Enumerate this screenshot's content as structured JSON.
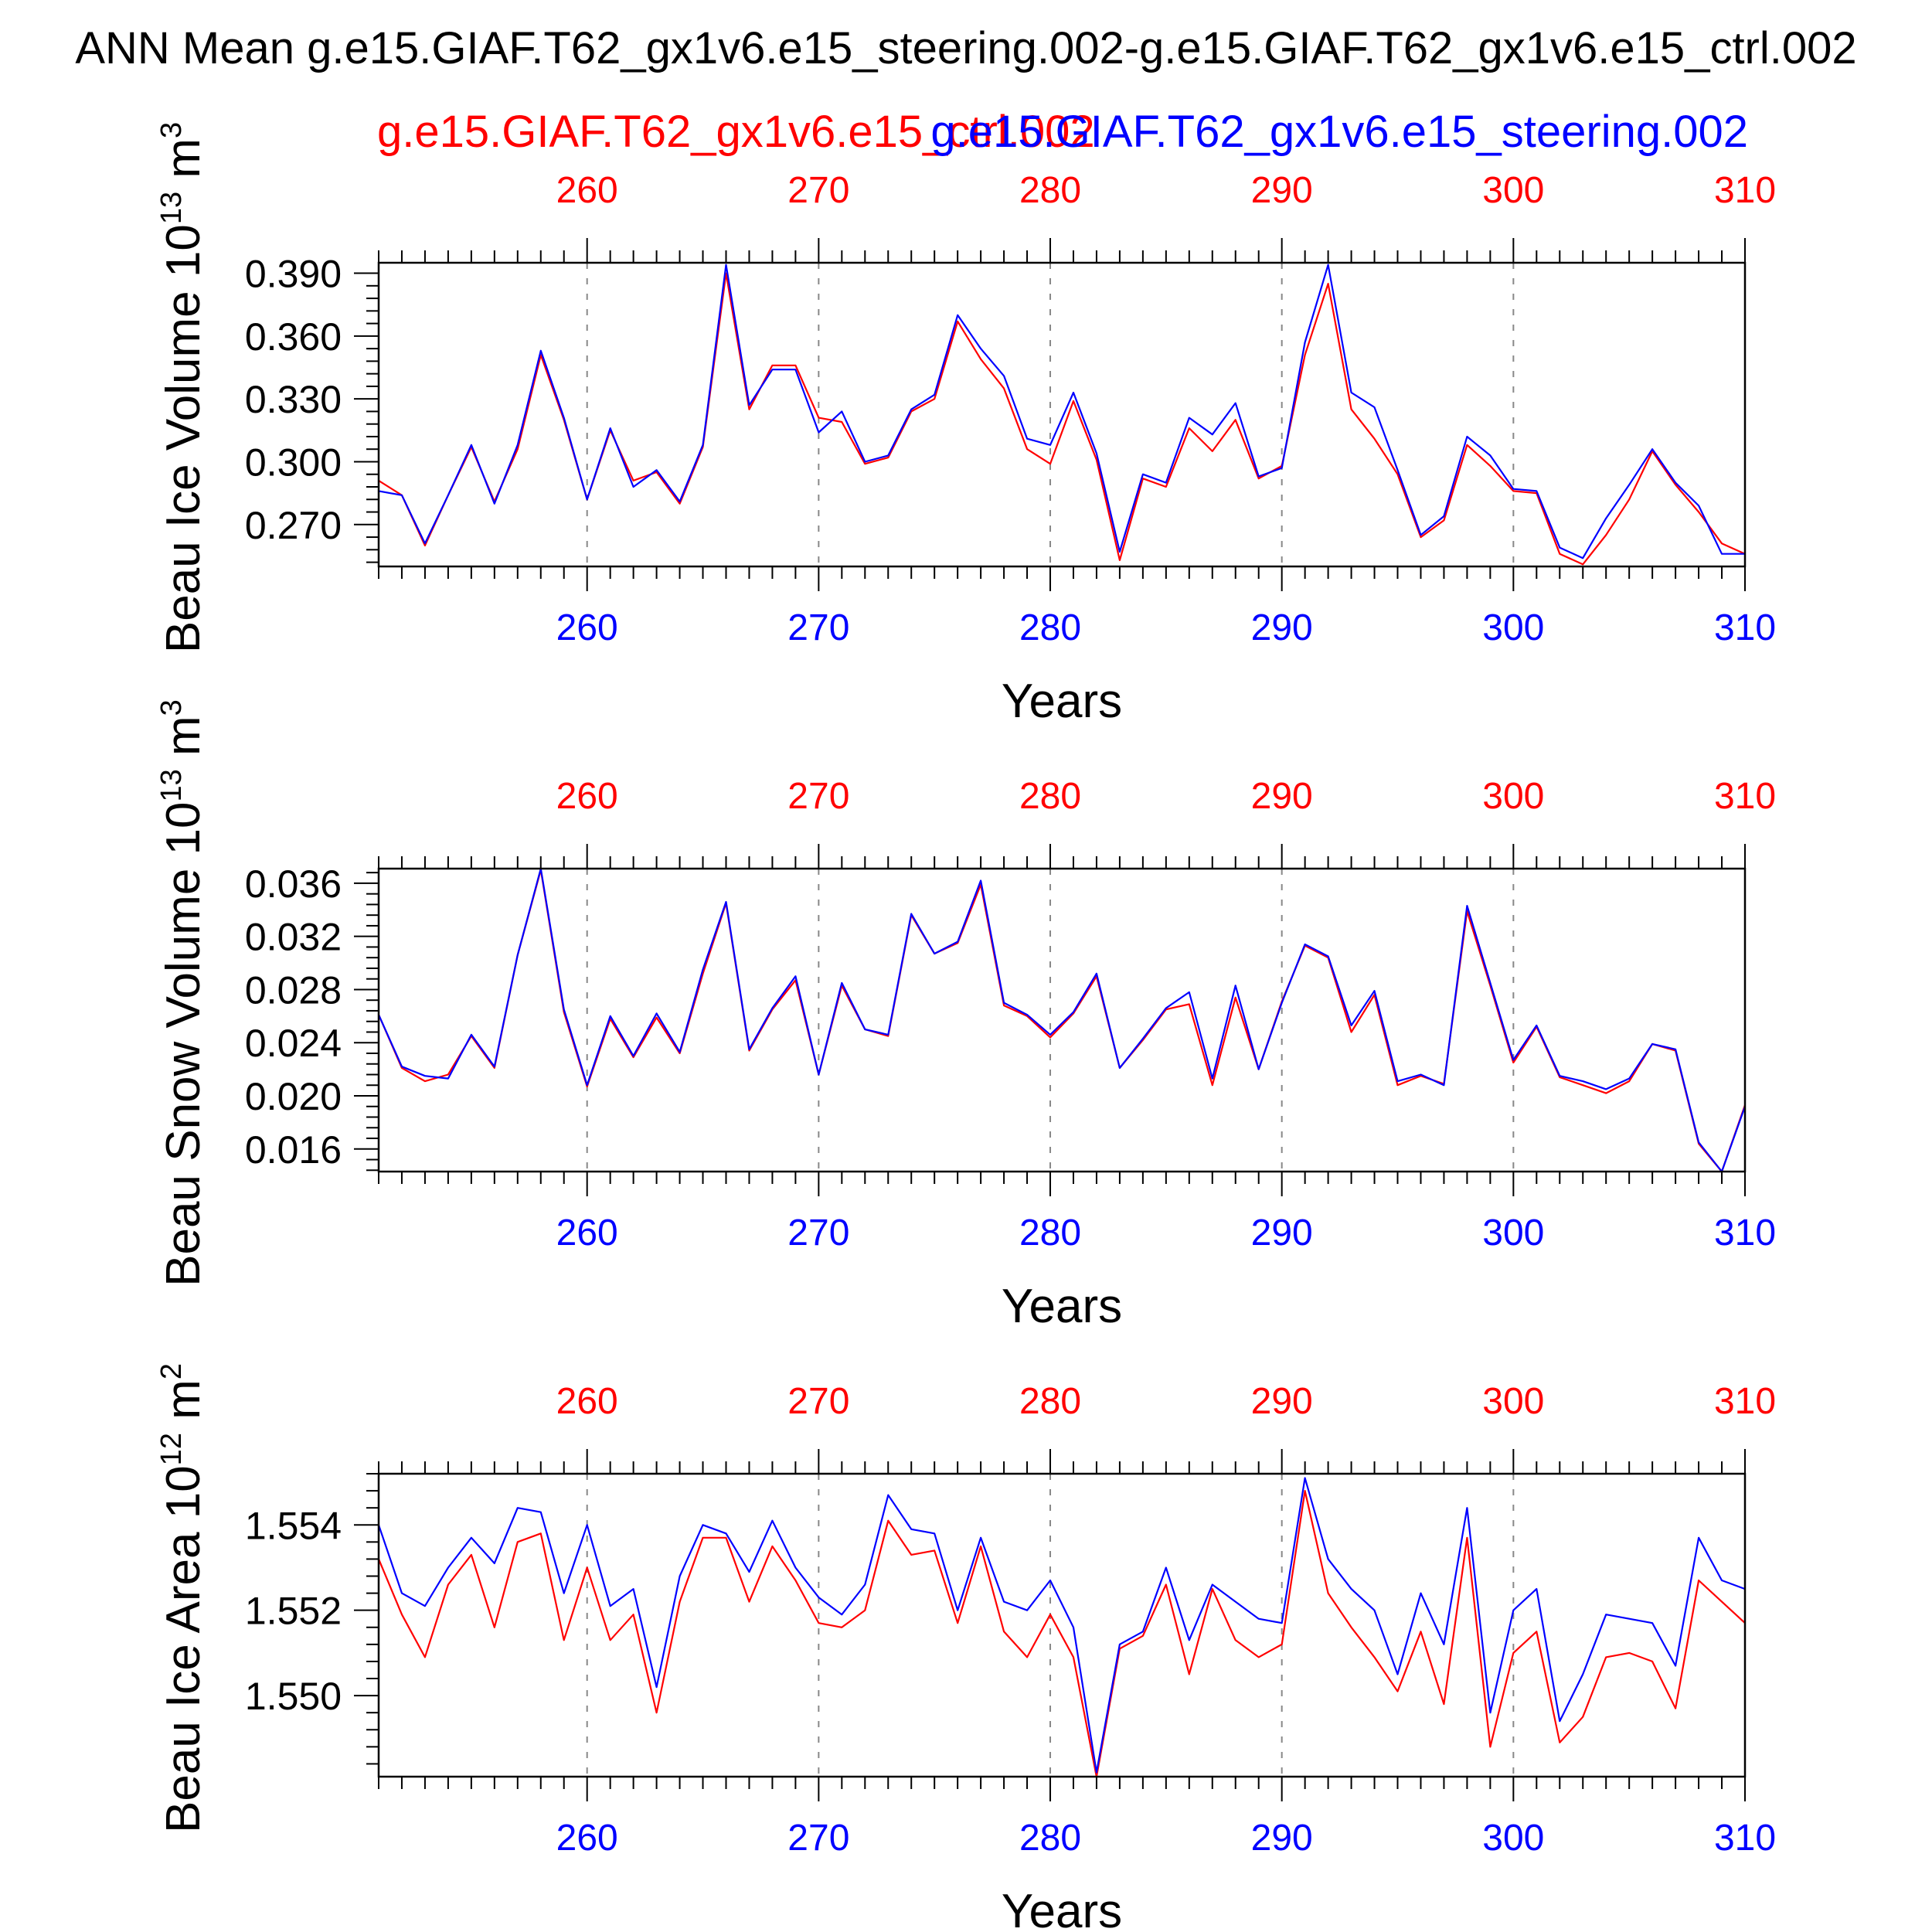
{
  "title": "ANN Mean g.e15.GIAF.T62_gx1v6.e15_steering.002-g.e15.GIAF.T62_gx1v6.e15_ctrl.002",
  "legend": {
    "ctrl_label": "g.e15.GIAF.T62_gx1v6.e15_ctrl.002",
    "steering_label": "g.e15.GIAF.T62_gx1v6.e15_steering.002"
  },
  "colors": {
    "ctrl": "#ff0000",
    "steering": "#0000ff",
    "axis": "#000000",
    "grid": "#888888"
  },
  "chart_data": [
    {
      "type": "line",
      "ylabel_main": "Beau Ice Volume 10",
      "ylabel_exp": "13",
      "ylabel_unit": "m",
      "ylabel_unit_exp": "3",
      "xlabel": "Years",
      "xlim": [
        251,
        310
      ],
      "ylim": [
        0.25,
        0.395
      ],
      "xticks": [
        260,
        270,
        280,
        290,
        300,
        310
      ],
      "yticks": [
        0.27,
        0.3,
        0.33,
        0.36,
        0.39
      ],
      "ytick_labels": [
        "0.270",
        "0.300",
        "0.330",
        "0.360",
        "0.390"
      ],
      "grid": "vertical dashed at major x ticks",
      "x": [
        251,
        252,
        253,
        254,
        255,
        256,
        257,
        258,
        259,
        260,
        261,
        262,
        263,
        264,
        265,
        266,
        267,
        268,
        269,
        270,
        271,
        272,
        273,
        274,
        275,
        276,
        277,
        278,
        279,
        280,
        281,
        282,
        283,
        284,
        285,
        286,
        287,
        288,
        289,
        290,
        291,
        292,
        293,
        294,
        295,
        296,
        297,
        298,
        299,
        300,
        301,
        302,
        303,
        304,
        305,
        306,
        307,
        308,
        309,
        310
      ],
      "series": [
        {
          "name": "g.e15.GIAF.T62_gx1v6.e15_ctrl.002",
          "color": "#ff0000",
          "values": [
            0.291,
            0.284,
            0.26,
            0.284,
            0.307,
            0.281,
            0.306,
            0.351,
            0.32,
            0.282,
            0.315,
            0.291,
            0.295,
            0.28,
            0.307,
            0.39,
            0.325,
            0.346,
            0.346,
            0.321,
            0.319,
            0.299,
            0.302,
            0.324,
            0.33,
            0.367,
            0.349,
            0.335,
            0.306,
            0.299,
            0.329,
            0.301,
            0.253,
            0.292,
            0.288,
            0.316,
            0.305,
            0.32,
            0.292,
            0.298,
            0.351,
            0.385,
            0.325,
            0.311,
            0.294,
            0.264,
            0.272,
            0.308,
            0.298,
            0.286,
            0.285,
            0.256,
            0.251,
            0.265,
            0.282,
            0.305,
            0.289,
            0.276,
            0.261,
            0.256
          ]
        },
        {
          "name": "g.e15.GIAF.T62_gx1v6.e15_steering.002",
          "color": "#0000ff",
          "values": [
            0.286,
            0.284,
            0.261,
            0.284,
            0.308,
            0.28,
            0.308,
            0.353,
            0.321,
            0.282,
            0.316,
            0.288,
            0.296,
            0.281,
            0.308,
            0.394,
            0.327,
            0.344,
            0.344,
            0.314,
            0.324,
            0.3,
            0.303,
            0.325,
            0.332,
            0.37,
            0.354,
            0.341,
            0.311,
            0.308,
            0.333,
            0.304,
            0.257,
            0.294,
            0.29,
            0.321,
            0.313,
            0.328,
            0.293,
            0.297,
            0.357,
            0.394,
            0.333,
            0.326,
            0.296,
            0.265,
            0.274,
            0.312,
            0.303,
            0.287,
            0.286,
            0.259,
            0.254,
            0.273,
            0.289,
            0.306,
            0.29,
            0.279,
            0.256,
            0.256
          ]
        }
      ]
    },
    {
      "type": "line",
      "ylabel_main": "Beau Snow Volume 10",
      "ylabel_exp": "13",
      "ylabel_unit": "m",
      "ylabel_unit_exp": "3",
      "xlabel": "Years",
      "xlim": [
        251,
        310
      ],
      "ylim": [
        0.0143,
        0.0371
      ],
      "xticks": [
        260,
        270,
        280,
        290,
        300,
        310
      ],
      "yticks": [
        0.016,
        0.02,
        0.024,
        0.028,
        0.032,
        0.036
      ],
      "ytick_labels": [
        "0.016",
        "0.020",
        "0.024",
        "0.028",
        "0.032",
        "0.036"
      ],
      "grid": "vertical dashed at major x ticks",
      "x": [
        251,
        252,
        253,
        254,
        255,
        256,
        257,
        258,
        259,
        260,
        261,
        262,
        263,
        264,
        265,
        266,
        267,
        268,
        269,
        270,
        271,
        272,
        273,
        274,
        275,
        276,
        277,
        278,
        279,
        280,
        281,
        282,
        283,
        284,
        285,
        286,
        287,
        288,
        289,
        290,
        291,
        292,
        293,
        294,
        295,
        296,
        297,
        298,
        299,
        300,
        301,
        302,
        303,
        304,
        305,
        306,
        307,
        308,
        309,
        310
      ],
      "series": [
        {
          "name": "g.e15.GIAF.T62_gx1v6.e15_ctrl.002",
          "color": "#ff0000",
          "values": [
            0.0261,
            0.0221,
            0.0211,
            0.0216,
            0.0245,
            0.0221,
            0.0306,
            0.037,
            0.0263,
            0.0207,
            0.0258,
            0.0229,
            0.0259,
            0.0232,
            0.0292,
            0.0345,
            0.0234,
            0.0265,
            0.0287,
            0.0216,
            0.0283,
            0.025,
            0.0245,
            0.0336,
            0.0307,
            0.0315,
            0.0359,
            0.0268,
            0.026,
            0.0244,
            0.0262,
            0.029,
            0.0221,
            0.0242,
            0.0265,
            0.0269,
            0.0208,
            0.0274,
            0.022,
            0.0271,
            0.0313,
            0.0304,
            0.0248,
            0.0276,
            0.0208,
            0.0215,
            0.0209,
            0.0339,
            0.0283,
            0.0225,
            0.0252,
            0.0214,
            0.0208,
            0.0202,
            0.0211,
            0.0239,
            0.0234,
            0.0164,
            0.0143,
            0.0193
          ]
        },
        {
          "name": "g.e15.GIAF.T62_gx1v6.e15_steering.002",
          "color": "#0000ff",
          "values": [
            0.0261,
            0.0222,
            0.0215,
            0.0213,
            0.0246,
            0.0222,
            0.0306,
            0.0371,
            0.0265,
            0.0208,
            0.026,
            0.023,
            0.0262,
            0.0233,
            0.0295,
            0.0346,
            0.0235,
            0.0266,
            0.029,
            0.0216,
            0.0285,
            0.025,
            0.0246,
            0.0337,
            0.0307,
            0.0316,
            0.0362,
            0.027,
            0.0261,
            0.0246,
            0.0263,
            0.0292,
            0.0221,
            0.0243,
            0.0266,
            0.0278,
            0.0213,
            0.0283,
            0.022,
            0.027,
            0.0314,
            0.0305,
            0.0253,
            0.0279,
            0.0211,
            0.0216,
            0.0208,
            0.0343,
            0.0285,
            0.0227,
            0.0253,
            0.0215,
            0.0211,
            0.0205,
            0.0213,
            0.0239,
            0.0235,
            0.0165,
            0.0143,
            0.0192
          ]
        }
      ]
    },
    {
      "type": "line",
      "ylabel_main": "Beau Ice Area 10",
      "ylabel_exp": "12",
      "ylabel_unit": "m",
      "ylabel_unit_exp": "2",
      "xlabel": "Years",
      "xlim": [
        251,
        310
      ],
      "ylim": [
        1.5481,
        1.5552
      ],
      "xticks": [
        260,
        270,
        280,
        290,
        300,
        310
      ],
      "yticks": [
        1.55,
        1.552,
        1.554
      ],
      "ytick_labels": [
        "1.550",
        "1.552",
        "1.554"
      ],
      "grid": "vertical dashed at major x ticks",
      "x": [
        251,
        252,
        253,
        254,
        255,
        256,
        257,
        258,
        259,
        260,
        261,
        262,
        263,
        264,
        265,
        266,
        267,
        268,
        269,
        270,
        271,
        272,
        273,
        274,
        275,
        276,
        277,
        278,
        279,
        280,
        281,
        282,
        283,
        284,
        285,
        286,
        287,
        288,
        289,
        290,
        291,
        292,
        293,
        294,
        295,
        296,
        297,
        298,
        299,
        300,
        301,
        302,
        303,
        304,
        305,
        306,
        307,
        308,
        309,
        310
      ],
      "series": [
        {
          "name": "g.e15.GIAF.T62_gx1v6.e15_ctrl.002",
          "color": "#ff0000",
          "values": [
            1.5532,
            1.5519,
            1.5509,
            1.5526,
            1.5533,
            1.5516,
            1.5536,
            1.5538,
            1.5513,
            1.553,
            1.5513,
            1.5519,
            1.5496,
            1.5522,
            1.5537,
            1.5537,
            1.5522,
            1.5535,
            1.5527,
            1.5517,
            1.5516,
            1.552,
            1.5541,
            1.5533,
            1.5534,
            1.5517,
            1.5535,
            1.5515,
            1.5509,
            1.5519,
            1.5509,
            1.5481,
            1.5511,
            1.5514,
            1.5526,
            1.5505,
            1.5525,
            1.5513,
            1.5509,
            1.5512,
            1.5548,
            1.5524,
            1.5516,
            1.5509,
            1.5501,
            1.5515,
            1.5498,
            1.5537,
            1.5488,
            1.551,
            1.5515,
            1.5489,
            1.5495,
            1.5509,
            1.551,
            1.5508,
            1.5497,
            1.5527,
            1.5522,
            1.5517
          ]
        },
        {
          "name": "g.e15.GIAF.T62_gx1v6.e15_steering.002",
          "color": "#0000ff",
          "values": [
            1.554,
            1.5524,
            1.5521,
            1.553,
            1.5537,
            1.5531,
            1.5544,
            1.5543,
            1.5524,
            1.554,
            1.5521,
            1.5525,
            1.5502,
            1.5528,
            1.554,
            1.5538,
            1.5529,
            1.5541,
            1.553,
            1.5523,
            1.5519,
            1.5526,
            1.5547,
            1.5539,
            1.5538,
            1.552,
            1.5537,
            1.5522,
            1.552,
            1.5527,
            1.5516,
            1.5482,
            1.5512,
            1.5515,
            1.553,
            1.5513,
            1.5526,
            1.5522,
            1.5518,
            1.5517,
            1.5551,
            1.5532,
            1.5525,
            1.552,
            1.5505,
            1.5524,
            1.5512,
            1.5544,
            1.5496,
            1.552,
            1.5525,
            1.5494,
            1.5505,
            1.5519,
            1.5518,
            1.5517,
            1.5507,
            1.5537,
            1.5527,
            1.5525
          ]
        }
      ]
    }
  ]
}
